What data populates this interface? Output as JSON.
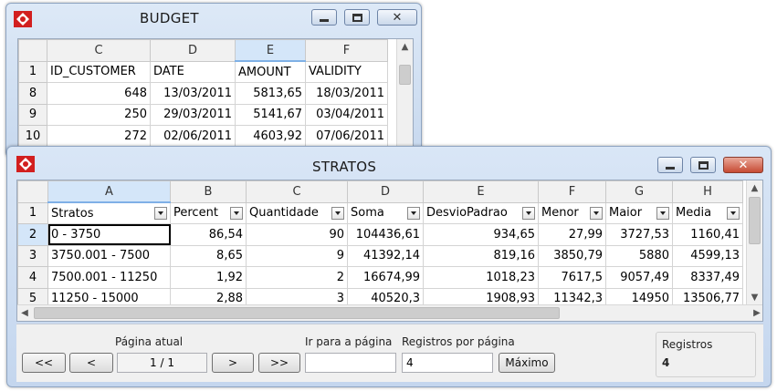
{
  "budget_window": {
    "title": "BUDGET",
    "columns": [
      "C",
      "D",
      "E",
      "F"
    ],
    "selected_column": "E",
    "rows": [
      {
        "row": "1",
        "cells": [
          "ID_CUSTOMER",
          "DATE",
          "AMOUNT",
          "VALIDITY"
        ],
        "align": [
          "txt",
          "txt",
          "txt",
          "txt"
        ]
      },
      {
        "row": "8",
        "cells": [
          "648",
          "13/03/2011",
          "5813,65",
          "18/03/2011"
        ],
        "align": [
          "num",
          "num",
          "num",
          "num"
        ]
      },
      {
        "row": "9",
        "cells": [
          "250",
          "29/03/2011",
          "5141,67",
          "03/04/2011"
        ],
        "align": [
          "num",
          "num",
          "num",
          "num"
        ]
      },
      {
        "row": "10",
        "cells": [
          "272",
          "02/06/2011",
          "4603,92",
          "07/06/2011"
        ],
        "align": [
          "num",
          "num",
          "num",
          "num"
        ]
      }
    ]
  },
  "stratos_window": {
    "title": "STRATOS",
    "columns": [
      "A",
      "B",
      "C",
      "D",
      "E",
      "F",
      "G",
      "H"
    ],
    "selected_column": "A",
    "header_row": {
      "row": "1",
      "cells": [
        "Stratos",
        "Percent",
        "Quantidade",
        "Soma",
        "DesvioPadrao",
        "Menor",
        "Maior",
        "Media"
      ]
    },
    "rows": [
      {
        "row": "2",
        "cells": [
          "0 - 3750",
          "86,54",
          "90",
          "104436,61",
          "934,65",
          "27,99",
          "3727,53",
          "1160,41"
        ]
      },
      {
        "row": "3",
        "cells": [
          "3750.001 - 7500",
          "8,65",
          "9",
          "41392,14",
          "819,16",
          "3850,79",
          "5880",
          "4599,13"
        ]
      },
      {
        "row": "4",
        "cells": [
          "7500.001 - 11250",
          "1,92",
          "2",
          "16674,99",
          "1018,23",
          "7617,5",
          "9057,49",
          "8337,49"
        ]
      },
      {
        "row": "5",
        "cells": [
          "11250 - 15000",
          "2,88",
          "3",
          "40520,3",
          "1908,93",
          "11342,3",
          "14950",
          "13506,77"
        ]
      }
    ],
    "active_row": "2",
    "active_cell": "0 - 3750"
  },
  "pager": {
    "current_page_label": "Página atual",
    "first_label": "<<",
    "prev_label": "<",
    "current_page_value": "1 / 1",
    "next_label": ">",
    "last_label": ">>",
    "goto_label": "Ir para a página",
    "goto_value": "",
    "per_page_label": "Registros por página",
    "per_page_value": "4",
    "max_label": "Máximo",
    "records_label": "Registros",
    "records_value": "4"
  },
  "colors": {
    "window_bg": "#c7d8ee",
    "selected_header": "#d4e6f9",
    "close_red": "#c74a33"
  }
}
